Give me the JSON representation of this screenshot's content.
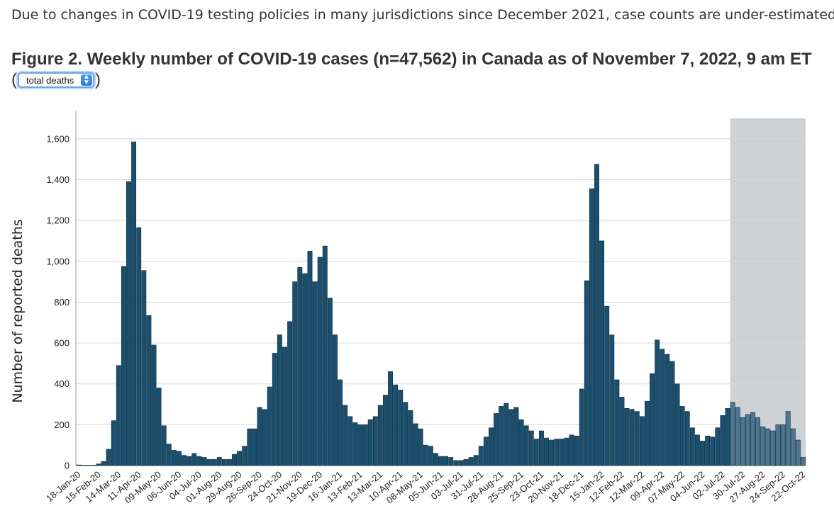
{
  "notice": "Due to changes in COVID-19 testing policies in many jurisdictions since December 2021, case counts are under-estimated.",
  "figure_title": "Figure 2. Weekly number of COVID-19 cases (n=47,562) in Canada as of November 7, 2022, 9 am ET",
  "selector": {
    "value": "total deaths",
    "paren_open": "(",
    "paren_close": ")"
  },
  "colors": {
    "bar": "#1b4f6e",
    "bar_edge": "#0b2a3c",
    "shaded_bar": "#4e7690",
    "shaded_region": "#cfd2d5",
    "grid": "#d7d7d7"
  },
  "chart_data": {
    "type": "bar",
    "title": "",
    "xlabel": "",
    "ylabel": "Number of reported deaths",
    "ylim": [
      0,
      1700
    ],
    "yticks": [
      0,
      200,
      400,
      600,
      800,
      1000,
      1200,
      1400,
      1600
    ],
    "ytick_labels": [
      "0",
      "200",
      "400",
      "600",
      "800",
      "1,000",
      "1,200",
      "1,400",
      "1,600"
    ],
    "grid": true,
    "shaded_from_index": 130,
    "xtick_labels": [
      "18-Jan-20",
      "15-Feb-20",
      "14-Mar-20",
      "11-Apr-20",
      "09-May-20",
      "06-Jun-20",
      "04-Jul-20",
      "01-Aug-20",
      "29-Aug-20",
      "26-Sep-20",
      "24-Oct-20",
      "21-Nov-20",
      "19-Dec-20",
      "16-Jan-21",
      "13-Feb-21",
      "13-Mar-21",
      "10-Apr-21",
      "08-May-21",
      "05-Jun-21",
      "03-Jul-21",
      "31-Jul-21",
      "28-Aug-21",
      "25-Sep-21",
      "23-Oct-21",
      "20-Nov-21",
      "18-Dec-21",
      "15-Jan-22",
      "12-Feb-22",
      "12-Mar-22",
      "09-Apr-22",
      "07-May-22",
      "04-Jun-22",
      "02-Jul-22",
      "30-Jul-22",
      "27-Aug-22",
      "24-Sep-22",
      "22-Oct-22"
    ],
    "values": [
      3,
      0,
      2,
      1,
      8,
      20,
      80,
      220,
      490,
      975,
      1390,
      1585,
      1165,
      955,
      735,
      590,
      380,
      195,
      105,
      75,
      70,
      50,
      45,
      60,
      45,
      40,
      30,
      30,
      40,
      30,
      30,
      55,
      70,
      95,
      180,
      180,
      285,
      275,
      385,
      550,
      640,
      580,
      705,
      900,
      970,
      940,
      1050,
      900,
      1020,
      1075,
      820,
      640,
      420,
      295,
      240,
      210,
      200,
      200,
      225,
      240,
      295,
      345,
      460,
      395,
      370,
      310,
      270,
      205,
      180,
      100,
      95,
      60,
      45,
      45,
      40,
      25,
      25,
      30,
      40,
      50,
      95,
      140,
      185,
      255,
      290,
      305,
      275,
      285,
      225,
      195,
      170,
      130,
      170,
      135,
      125,
      130,
      130,
      135,
      150,
      145,
      375,
      905,
      1355,
      1475,
      1100,
      780,
      640,
      420,
      335,
      280,
      275,
      265,
      240,
      315,
      450,
      615,
      570,
      545,
      510,
      400,
      290,
      265,
      185,
      150,
      120,
      145,
      140,
      185,
      245,
      280,
      310,
      285,
      235,
      250,
      260,
      235,
      190,
      180,
      170,
      200,
      200,
      265,
      180,
      125,
      40
    ]
  }
}
